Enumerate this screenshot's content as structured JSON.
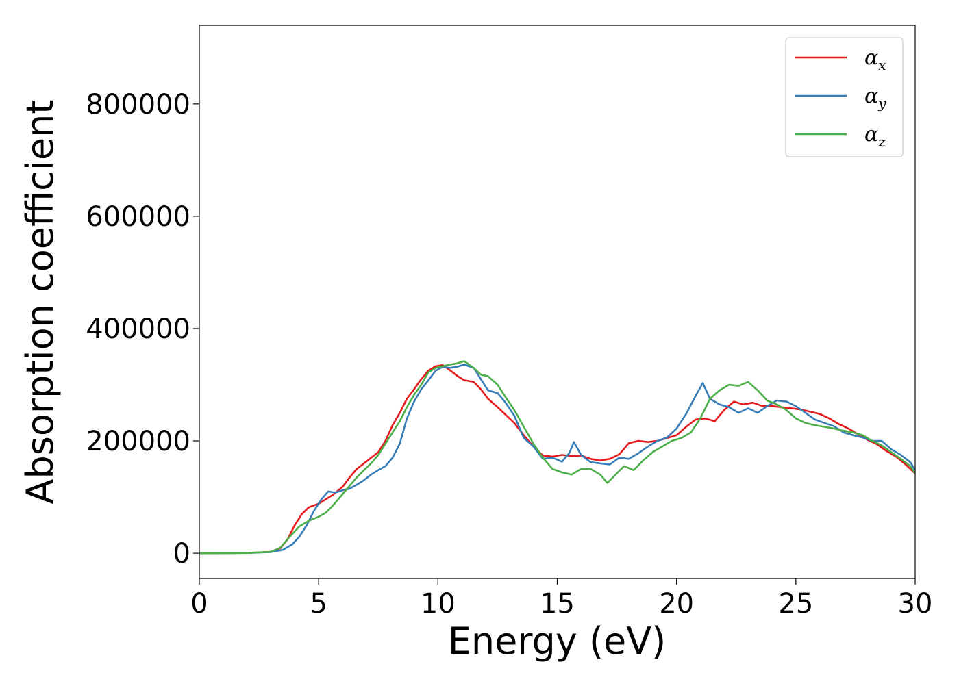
{
  "chart_data": {
    "type": "line",
    "title": "",
    "xlabel": "Energy (eV)",
    "ylabel": "Absorption coefficient",
    "xlim": [
      0,
      30
    ],
    "ylim": [
      -45000,
      940000
    ],
    "xticks": [
      0,
      5,
      10,
      15,
      20,
      25,
      30
    ],
    "yticks": [
      0,
      200000,
      400000,
      600000,
      800000
    ],
    "xtick_labels": [
      "0",
      "5",
      "10",
      "15",
      "20",
      "25",
      "30"
    ],
    "ytick_labels": [
      "0",
      "200000",
      "400000",
      "600000",
      "800000"
    ],
    "grid": false,
    "legend_position": "top-right",
    "series": [
      {
        "name": "α_x",
        "legend_symbol": "α",
        "legend_sub": "x",
        "color": "#e41a1c",
        "points": [
          [
            0,
            0
          ],
          [
            2,
            500
          ],
          [
            3,
            2500
          ],
          [
            3.4,
            9000
          ],
          [
            3.7,
            25000
          ],
          [
            4,
            50000
          ],
          [
            4.3,
            70000
          ],
          [
            4.6,
            82000
          ],
          [
            5,
            88000
          ],
          [
            5.3,
            96000
          ],
          [
            5.6,
            104000
          ],
          [
            6,
            118000
          ],
          [
            6.3,
            135000
          ],
          [
            6.6,
            150000
          ],
          [
            6.9,
            160000
          ],
          [
            7.2,
            170000
          ],
          [
            7.5,
            180000
          ],
          [
            7.8,
            200000
          ],
          [
            8.1,
            228000
          ],
          [
            8.4,
            250000
          ],
          [
            8.7,
            275000
          ],
          [
            9,
            292000
          ],
          [
            9.3,
            310000
          ],
          [
            9.6,
            325000
          ],
          [
            9.9,
            333000
          ],
          [
            10.2,
            335000
          ],
          [
            10.5,
            326000
          ],
          [
            10.8,
            316000
          ],
          [
            11.1,
            308000
          ],
          [
            11.5,
            305000
          ],
          [
            11.8,
            292000
          ],
          [
            12.1,
            275000
          ],
          [
            12.5,
            260000
          ],
          [
            12.8,
            248000
          ],
          [
            13.2,
            232000
          ],
          [
            13.6,
            210000
          ],
          [
            14,
            190000
          ],
          [
            14.4,
            174000
          ],
          [
            14.8,
            172000
          ],
          [
            15.2,
            175000
          ],
          [
            15.6,
            173000
          ],
          [
            16,
            174000
          ],
          [
            16.4,
            168000
          ],
          [
            16.8,
            165000
          ],
          [
            17.2,
            168000
          ],
          [
            17.6,
            176000
          ],
          [
            18,
            196000
          ],
          [
            18.4,
            200000
          ],
          [
            18.8,
            198000
          ],
          [
            19.2,
            200000
          ],
          [
            19.6,
            205000
          ],
          [
            20,
            210000
          ],
          [
            20.4,
            225000
          ],
          [
            20.8,
            238000
          ],
          [
            21.2,
            240000
          ],
          [
            21.6,
            235000
          ],
          [
            22,
            255000
          ],
          [
            22.4,
            270000
          ],
          [
            22.8,
            265000
          ],
          [
            23.2,
            268000
          ],
          [
            23.6,
            262000
          ],
          [
            24,
            262000
          ],
          [
            24.4,
            260000
          ],
          [
            24.8,
            258000
          ],
          [
            25.2,
            256000
          ],
          [
            25.6,
            252000
          ],
          [
            26,
            248000
          ],
          [
            26.4,
            240000
          ],
          [
            26.8,
            230000
          ],
          [
            27.2,
            222000
          ],
          [
            27.6,
            212000
          ],
          [
            28,
            202000
          ],
          [
            28.4,
            194000
          ],
          [
            28.8,
            182000
          ],
          [
            29.2,
            172000
          ],
          [
            29.6,
            158000
          ],
          [
            30,
            142000
          ]
        ]
      },
      {
        "name": "α_y",
        "legend_symbol": "α",
        "legend_sub": "y",
        "color": "#377eb8",
        "points": [
          [
            0,
            0
          ],
          [
            2,
            500
          ],
          [
            3,
            2000
          ],
          [
            3.5,
            6000
          ],
          [
            3.9,
            16000
          ],
          [
            4.2,
            30000
          ],
          [
            4.5,
            50000
          ],
          [
            4.8,
            75000
          ],
          [
            5.1,
            95000
          ],
          [
            5.4,
            110000
          ],
          [
            5.7,
            108000
          ],
          [
            6,
            112000
          ],
          [
            6.3,
            115000
          ],
          [
            6.6,
            122000
          ],
          [
            6.9,
            130000
          ],
          [
            7.2,
            140000
          ],
          [
            7.5,
            148000
          ],
          [
            7.8,
            155000
          ],
          [
            8.1,
            170000
          ],
          [
            8.4,
            195000
          ],
          [
            8.7,
            240000
          ],
          [
            9,
            270000
          ],
          [
            9.3,
            292000
          ],
          [
            9.6,
            308000
          ],
          [
            9.9,
            325000
          ],
          [
            10.2,
            332000
          ],
          [
            10.5,
            330000
          ],
          [
            10.8,
            332000
          ],
          [
            11.1,
            336000
          ],
          [
            11.5,
            330000
          ],
          [
            11.8,
            310000
          ],
          [
            12.1,
            290000
          ],
          [
            12.5,
            285000
          ],
          [
            12.8,
            270000
          ],
          [
            13.2,
            245000
          ],
          [
            13.6,
            205000
          ],
          [
            14,
            190000
          ],
          [
            14.4,
            168000
          ],
          [
            14.8,
            170000
          ],
          [
            15.2,
            163000
          ],
          [
            15.5,
            178000
          ],
          [
            15.7,
            198000
          ],
          [
            16,
            175000
          ],
          [
            16.4,
            162000
          ],
          [
            16.8,
            160000
          ],
          [
            17.2,
            158000
          ],
          [
            17.6,
            170000
          ],
          [
            18,
            168000
          ],
          [
            18.4,
            178000
          ],
          [
            18.8,
            190000
          ],
          [
            19.2,
            200000
          ],
          [
            19.6,
            206000
          ],
          [
            20,
            222000
          ],
          [
            20.4,
            248000
          ],
          [
            20.8,
            280000
          ],
          [
            21.1,
            303000
          ],
          [
            21.4,
            275000
          ],
          [
            21.8,
            265000
          ],
          [
            22.2,
            260000
          ],
          [
            22.6,
            250000
          ],
          [
            23,
            258000
          ],
          [
            23.4,
            250000
          ],
          [
            23.8,
            262000
          ],
          [
            24.2,
            272000
          ],
          [
            24.6,
            270000
          ],
          [
            25,
            262000
          ],
          [
            25.4,
            250000
          ],
          [
            25.8,
            238000
          ],
          [
            26.2,
            232000
          ],
          [
            26.6,
            226000
          ],
          [
            27,
            215000
          ],
          [
            27.4,
            210000
          ],
          [
            27.8,
            206000
          ],
          [
            28.2,
            200000
          ],
          [
            28.6,
            200000
          ],
          [
            29,
            185000
          ],
          [
            29.4,
            175000
          ],
          [
            29.8,
            162000
          ],
          [
            30,
            148000
          ]
        ]
      },
      {
        "name": "α_z",
        "legend_symbol": "α",
        "legend_sub": "z",
        "color": "#4daf4a",
        "points": [
          [
            0,
            0
          ],
          [
            2,
            500
          ],
          [
            3,
            2500
          ],
          [
            3.4,
            10000
          ],
          [
            3.8,
            30000
          ],
          [
            4.2,
            48000
          ],
          [
            4.6,
            58000
          ],
          [
            5,
            65000
          ],
          [
            5.3,
            72000
          ],
          [
            5.6,
            85000
          ],
          [
            6,
            105000
          ],
          [
            6.3,
            120000
          ],
          [
            6.6,
            135000
          ],
          [
            6.9,
            148000
          ],
          [
            7.2,
            160000
          ],
          [
            7.5,
            175000
          ],
          [
            7.8,
            195000
          ],
          [
            8.1,
            215000
          ],
          [
            8.4,
            235000
          ],
          [
            8.7,
            260000
          ],
          [
            9,
            282000
          ],
          [
            9.3,
            300000
          ],
          [
            9.6,
            322000
          ],
          [
            9.9,
            330000
          ],
          [
            10.2,
            333000
          ],
          [
            10.5,
            336000
          ],
          [
            10.8,
            338000
          ],
          [
            11.1,
            342000
          ],
          [
            11.5,
            330000
          ],
          [
            11.8,
            318000
          ],
          [
            12.1,
            315000
          ],
          [
            12.5,
            300000
          ],
          [
            12.8,
            280000
          ],
          [
            13.2,
            255000
          ],
          [
            13.6,
            225000
          ],
          [
            14,
            195000
          ],
          [
            14.4,
            170000
          ],
          [
            14.8,
            150000
          ],
          [
            15.2,
            144000
          ],
          [
            15.6,
            140000
          ],
          [
            16,
            150000
          ],
          [
            16.4,
            150000
          ],
          [
            16.8,
            140000
          ],
          [
            17.1,
            125000
          ],
          [
            17.4,
            138000
          ],
          [
            17.8,
            155000
          ],
          [
            18.2,
            148000
          ],
          [
            18.6,
            165000
          ],
          [
            19,
            180000
          ],
          [
            19.4,
            190000
          ],
          [
            19.8,
            200000
          ],
          [
            20.2,
            205000
          ],
          [
            20.6,
            215000
          ],
          [
            21,
            240000
          ],
          [
            21.4,
            275000
          ],
          [
            21.8,
            290000
          ],
          [
            22.2,
            300000
          ],
          [
            22.6,
            298000
          ],
          [
            23,
            305000
          ],
          [
            23.4,
            290000
          ],
          [
            23.8,
            272000
          ],
          [
            24.2,
            265000
          ],
          [
            24.6,
            255000
          ],
          [
            25,
            240000
          ],
          [
            25.4,
            232000
          ],
          [
            25.8,
            228000
          ],
          [
            26.2,
            225000
          ],
          [
            26.6,
            222000
          ],
          [
            27,
            218000
          ],
          [
            27.4,
            215000
          ],
          [
            27.8,
            210000
          ],
          [
            28.2,
            200000
          ],
          [
            28.6,
            192000
          ],
          [
            29,
            180000
          ],
          [
            29.4,
            168000
          ],
          [
            29.8,
            155000
          ],
          [
            30,
            142000
          ]
        ]
      }
    ]
  }
}
